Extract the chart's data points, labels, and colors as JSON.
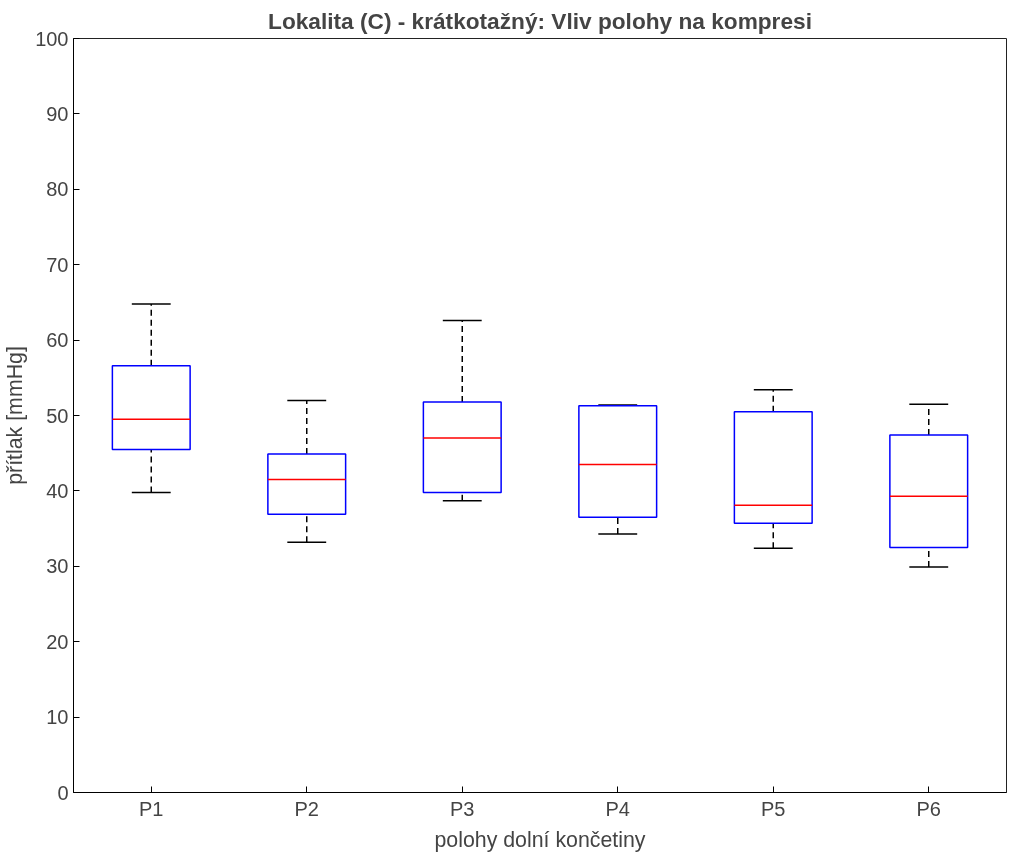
{
  "chart_data": {
    "type": "box",
    "title": "Lokalita (C) - krátkotažný: Vliv polohy na kompresi",
    "xlabel": "polohy dolní končetiny",
    "ylabel": "přítlak [mmHg]",
    "categories": [
      "P1",
      "P2",
      "P3",
      "P4",
      "P5",
      "P6"
    ],
    "series": [
      {
        "color": "#0000ff",
        "boxes": [
          {
            "low": 39.8,
            "q1": 45.5,
            "median": 49.5,
            "q3": 56.6,
            "high": 64.8
          },
          {
            "low": 33.2,
            "q1": 36.9,
            "median": 41.5,
            "q3": 44.9,
            "high": 52.0
          },
          {
            "low": 38.7,
            "q1": 39.8,
            "median": 47.0,
            "q3": 51.8,
            "high": 62.6
          },
          {
            "low": 34.3,
            "q1": 36.5,
            "median": 43.5,
            "q3": 51.3,
            "high": 51.4
          },
          {
            "low": 32.4,
            "q1": 35.7,
            "median": 38.1,
            "q3": 50.5,
            "high": 53.4
          },
          {
            "low": 29.9,
            "q1": 32.5,
            "median": 39.3,
            "q3": 47.4,
            "high": 51.5
          }
        ]
      }
    ],
    "ylim": [
      0,
      100
    ],
    "yticks": [
      0,
      10,
      20,
      30,
      40,
      50,
      60,
      70,
      80,
      90,
      100
    ],
    "grid": false
  }
}
